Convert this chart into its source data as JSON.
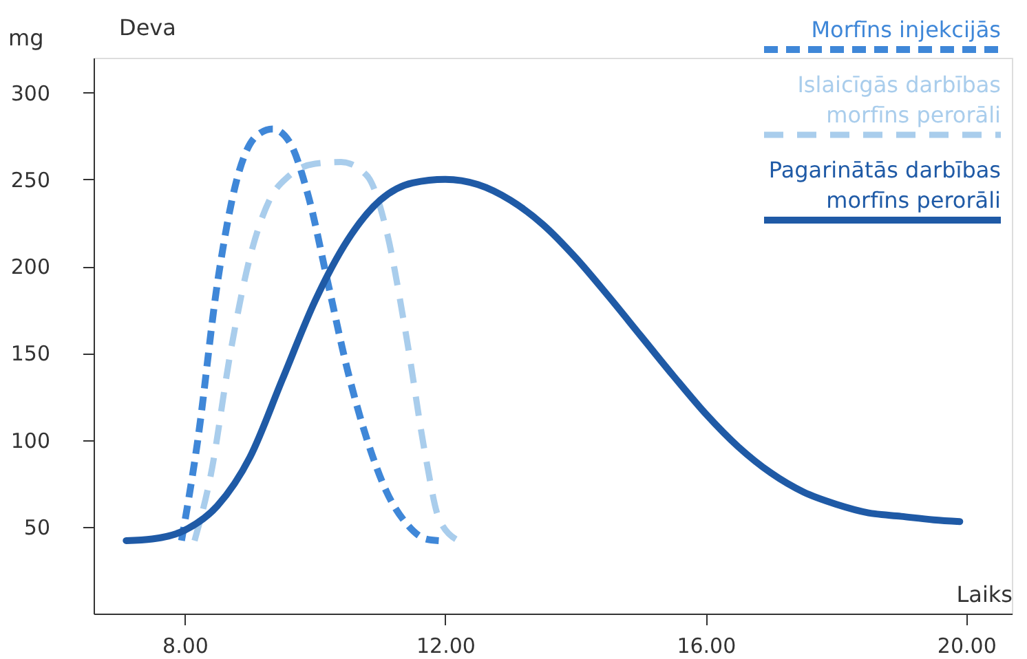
{
  "chart_data": {
    "type": "line",
    "xlabel": "Laiks",
    "ylabel": "Deva",
    "annotations": [
      "mg"
    ],
    "xlim": [
      6.6,
      20.7
    ],
    "ylim": [
      0,
      320
    ],
    "xticks": [
      {
        "value": 8,
        "label": "8.00"
      },
      {
        "value": 12,
        "label": "12.00"
      },
      {
        "value": 16,
        "label": "16.00"
      },
      {
        "value": 20,
        "label": "20.00"
      }
    ],
    "yticks": [
      50,
      100,
      150,
      200,
      250,
      300
    ],
    "grid": false,
    "legend": "top right",
    "marker": "none",
    "series": [
      {
        "name": "Morfīns injekcijās",
        "color": "#3f87d8",
        "line_style": "dashed",
        "x": [
          7.95,
          8.2,
          8.5,
          8.8,
          9.1,
          9.35,
          9.6,
          9.9,
          10.2,
          10.5,
          10.8,
          11.1,
          11.4,
          11.7,
          11.9
        ],
        "values": [
          42,
          100,
          190,
          250,
          275,
          279,
          272,
          240,
          190,
          140,
          100,
          70,
          52,
          43,
          42
        ]
      },
      {
        "name": "Islaicīgās darbības morfīns perorāli",
        "color": "#a9cdec",
        "line_style": "dashed",
        "x": [
          8.15,
          8.4,
          8.7,
          9.0,
          9.3,
          9.6,
          10.0,
          10.4,
          10.8,
          11.1,
          11.4,
          11.7,
          11.9,
          12.2
        ],
        "values": [
          42,
          80,
          150,
          205,
          238,
          252,
          259,
          260,
          252,
          220,
          160,
          90,
          55,
          42
        ]
      },
      {
        "name": "Pagarinātās darbības morfīns perorāli",
        "color": "#1f5aa6",
        "line_style": "solid",
        "x": [
          7.1,
          7.5,
          8,
          8.5,
          9,
          9.5,
          10,
          10.5,
          11,
          11.5,
          12,
          12.5,
          13,
          13.5,
          14,
          14.5,
          15,
          15.5,
          16,
          16.5,
          17,
          17.5,
          18,
          18.5,
          19,
          19.5,
          19.9
        ],
        "values": [
          42,
          43,
          48,
          62,
          90,
          135,
          180,
          215,
          238,
          248,
          250,
          247,
          238,
          224,
          205,
          183,
          160,
          137,
          115,
          96,
          81,
          70,
          63,
          58,
          56,
          54,
          53
        ]
      }
    ]
  }
}
